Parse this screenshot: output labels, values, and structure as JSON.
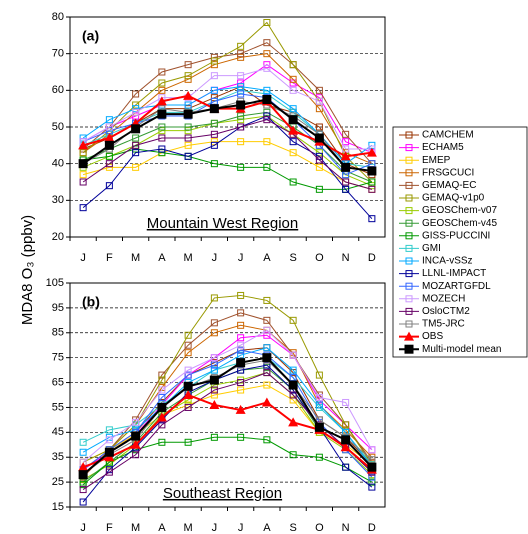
{
  "ylabel": "MDA8 O₃  (ppbv)",
  "chart_data": [
    {
      "type": "line",
      "panel_label": "(a)",
      "region": "Mountain West Region",
      "categories": [
        "J",
        "F",
        "M",
        "A",
        "M",
        "J",
        "J",
        "A",
        "S",
        "O",
        "N",
        "D"
      ],
      "ylim": [
        20,
        80
      ],
      "yticks": [
        20,
        30,
        40,
        50,
        60,
        70,
        80
      ],
      "grid": true,
      "series": [
        {
          "name": "CAMCHEM",
          "color": "#993300",
          "marker": "square-open",
          "values": [
            44,
            47,
            51,
            55,
            55,
            58,
            61,
            56,
            54,
            50,
            40,
            37
          ]
        },
        {
          "name": "ECHAM5",
          "color": "#ff00ff",
          "marker": "square-open",
          "values": [
            46,
            50,
            53,
            56,
            56,
            60,
            62,
            67,
            62,
            58,
            46,
            43
          ]
        },
        {
          "name": "EMEP",
          "color": "#ffcc00",
          "marker": "square-open",
          "values": [
            37,
            39,
            39,
            43,
            45,
            46,
            46,
            46,
            43,
            39,
            35,
            33
          ]
        },
        {
          "name": "FRSGCUCI",
          "color": "#cc6600",
          "marker": "square-open",
          "values": [
            43,
            48,
            54,
            60,
            63,
            67,
            69,
            70,
            63,
            55,
            43,
            40
          ]
        },
        {
          "name": "GEMAQ-EC",
          "color": "#a0522d",
          "marker": "square-open",
          "values": [
            44,
            50,
            59,
            65,
            67,
            69,
            70,
            73,
            67,
            60,
            48,
            40
          ]
        },
        {
          "name": "GEMAQ-v1p0",
          "color": "#999900",
          "marker": "square-open",
          "values": [
            43,
            49,
            56,
            62,
            64,
            68,
            72,
            78.5,
            67,
            57,
            42,
            35
          ]
        },
        {
          "name": "GEOSChem-v07",
          "color": "#99cc00",
          "marker": "square-open",
          "values": [
            39,
            42,
            45,
            49,
            49,
            51,
            52,
            53,
            48,
            43,
            37,
            34
          ]
        },
        {
          "name": "GEOSChem-v45",
          "color": "#339933",
          "marker": "square-open",
          "values": [
            41,
            44,
            47,
            50,
            50,
            51,
            53,
            54,
            50,
            45,
            38,
            35
          ]
        },
        {
          "name": "GISS-PUCCINI",
          "color": "#009900",
          "marker": "square-open",
          "values": [
            41,
            42,
            44,
            43,
            42,
            40,
            39,
            39,
            35,
            33,
            33,
            35
          ]
        },
        {
          "name": "GMI",
          "color": "#33cccc",
          "marker": "square-open",
          "values": [
            45,
            48,
            51,
            54,
            54,
            57,
            60,
            59,
            54,
            48,
            40,
            39
          ]
        },
        {
          "name": "INCA-vSSz",
          "color": "#00aaff",
          "marker": "square-open",
          "values": [
            47,
            52,
            55,
            56,
            56,
            60,
            61,
            60,
            55,
            48,
            40,
            45
          ]
        },
        {
          "name": "LLNL-IMPACT",
          "color": "#000099",
          "marker": "square-open",
          "values": [
            28,
            34,
            43,
            44,
            42,
            45,
            50,
            53,
            46,
            42,
            33,
            25
          ]
        },
        {
          "name": "MOZARTGFDL",
          "color": "#3366ff",
          "marker": "square-open",
          "values": [
            46,
            49,
            51,
            53,
            53,
            57,
            59,
            58,
            52,
            45,
            37,
            40
          ]
        },
        {
          "name": "MOZECH",
          "color": "#cc99ff",
          "marker": "square-open",
          "values": [
            46,
            50,
            54,
            58,
            58,
            64,
            64,
            66,
            60,
            57,
            44,
            44
          ]
        },
        {
          "name": "OsloCTM2",
          "color": "#660066",
          "marker": "square-open",
          "values": [
            35,
            40,
            45,
            47,
            47,
            48,
            50,
            52,
            48,
            41,
            35,
            33
          ]
        },
        {
          "name": "TM5-JRC",
          "color": "#808080",
          "marker": "square-open",
          "values": [
            40,
            44,
            50,
            55,
            54,
            55,
            57,
            56,
            53,
            48,
            39,
            38
          ]
        },
        {
          "name": "OBS",
          "color": "#ff0000",
          "marker": "triangle",
          "values": [
            45,
            47,
            51,
            57,
            58.5,
            55,
            55,
            57,
            49,
            46,
            42,
            43
          ]
        },
        {
          "name": "Multi-model mean",
          "color": "#000000",
          "marker": "square",
          "values": [
            40,
            45,
            49.5,
            53.5,
            53.5,
            55,
            56,
            57.5,
            52,
            47,
            39,
            38
          ]
        }
      ]
    },
    {
      "type": "line",
      "panel_label": "(b)",
      "region": "Southeast Region",
      "categories": [
        "J",
        "F",
        "M",
        "A",
        "M",
        "J",
        "J",
        "A",
        "S",
        "O",
        "N",
        "D"
      ],
      "ylim": [
        15,
        105
      ],
      "yticks": [
        15,
        25,
        35,
        45,
        55,
        65,
        75,
        85,
        95,
        105
      ],
      "grid": true,
      "series": [
        {
          "color": "#993300",
          "marker": "square-open",
          "values": [
            30,
            38,
            45,
            57,
            68,
            73,
            78,
            79,
            69,
            50,
            43,
            32
          ]
        },
        {
          "color": "#ff00ff",
          "marker": "square-open",
          "values": [
            30,
            37,
            44,
            56,
            68,
            75,
            83,
            84,
            76,
            58,
            48,
            38
          ]
        },
        {
          "color": "#ffcc00",
          "marker": "square-open",
          "values": [
            33,
            38,
            44,
            52,
            56,
            60,
            62,
            64,
            58,
            45,
            40,
            32
          ]
        },
        {
          "color": "#cc6600",
          "marker": "square-open",
          "values": [
            27,
            38,
            48,
            63,
            77,
            85,
            88,
            86,
            77,
            56,
            46,
            35
          ]
        },
        {
          "color": "#a0522d",
          "marker": "square-open",
          "values": [
            27,
            38,
            50,
            68,
            80,
            89,
            93,
            90,
            76,
            60,
            48,
            33
          ]
        },
        {
          "color": "#999900",
          "marker": "square-open",
          "values": [
            33,
            38,
            48,
            66,
            84,
            99,
            100,
            98,
            90,
            68,
            48,
            32
          ]
        },
        {
          "color": "#99cc00",
          "marker": "square-open",
          "values": [
            26,
            32,
            40,
            52,
            58,
            64,
            66,
            69,
            60,
            45,
            38,
            28
          ]
        },
        {
          "color": "#339933",
          "marker": "square-open",
          "values": [
            25,
            33,
            41,
            53,
            60,
            66,
            70,
            71,
            62,
            46,
            39,
            29
          ]
        },
        {
          "color": "#009900",
          "marker": "square-open",
          "values": [
            24,
            33,
            38,
            41,
            41,
            43,
            43,
            42,
            36,
            35,
            31,
            25
          ]
        },
        {
          "color": "#33cccc",
          "marker": "square-open",
          "values": [
            41,
            46,
            48,
            56,
            63,
            70,
            73,
            75,
            67,
            55,
            45,
            32
          ]
        },
        {
          "color": "#00aaff",
          "marker": "square-open",
          "values": [
            37,
            43,
            46,
            55,
            65,
            70,
            76,
            79,
            70,
            56,
            45,
            31
          ]
        },
        {
          "color": "#000099",
          "marker": "square-open",
          "values": [
            17,
            30,
            39,
            50,
            61,
            66,
            70,
            72,
            62,
            47,
            31,
            23
          ]
        },
        {
          "color": "#3366ff",
          "marker": "square-open",
          "values": [
            30,
            38,
            45,
            59,
            68,
            72,
            78,
            76,
            67,
            49,
            38,
            27
          ]
        },
        {
          "color": "#cc99ff",
          "marker": "square-open",
          "values": [
            33,
            42,
            49,
            62,
            70,
            75,
            80,
            86,
            76,
            59,
            57,
            38
          ]
        },
        {
          "color": "#660066",
          "marker": "square-open",
          "values": [
            22,
            29,
            36,
            48,
            55,
            62,
            65,
            69,
            60,
            48,
            39,
            29
          ]
        },
        {
          "color": "#808080",
          "marker": "square-open",
          "values": [
            28,
            36,
            42,
            55,
            63,
            67,
            72,
            74,
            64,
            50,
            43,
            34
          ]
        },
        {
          "color": "#ff0000",
          "marker": "triangle",
          "values": [
            31,
            35,
            40,
            51,
            60,
            56,
            54,
            57,
            49,
            46,
            39,
            30
          ]
        },
        {
          "color": "#000000",
          "marker": "square",
          "values": [
            28,
            37,
            43.5,
            55,
            63.5,
            66,
            73,
            75,
            64,
            47,
            42,
            31
          ]
        }
      ]
    }
  ]
}
